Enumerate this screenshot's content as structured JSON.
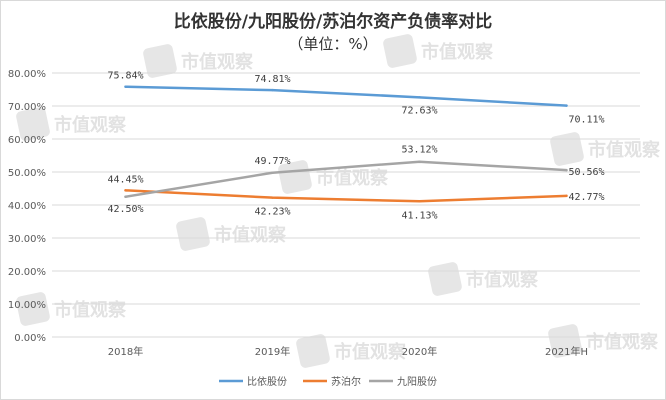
{
  "chart_data": {
    "type": "line",
    "title": "比依股份/九阳股份/苏泊尔资产负债率对比",
    "subtitle": "（单位：%）",
    "categories": [
      "2018年",
      "2019年",
      "2020年",
      "2021年H"
    ],
    "y_ticks": [
      "0.00%",
      "10.00%",
      "20.00%",
      "30.00%",
      "40.00%",
      "50.00%",
      "60.00%",
      "70.00%",
      "80.00%"
    ],
    "ylim": [
      0,
      80
    ],
    "grid": true,
    "legend_position": "bottom",
    "series": [
      {
        "name": "比依股份",
        "color": "#5B9BD5",
        "values": [
          75.84,
          74.81,
          72.63,
          70.11
        ],
        "labels": [
          "75.84%",
          "74.81%",
          "72.63%",
          "70.11%"
        ]
      },
      {
        "name": "苏泊尔",
        "color": "#ED7D31",
        "values": [
          44.45,
          42.23,
          41.13,
          42.77
        ],
        "labels": [
          "44.45%",
          "42.23%",
          "41.13%",
          "42.77%"
        ]
      },
      {
        "name": "九阳股份",
        "color": "#A5A5A5",
        "values": [
          42.5,
          49.77,
          53.12,
          50.56
        ],
        "labels": [
          "42.50%",
          "49.77%",
          "53.12%",
          "50.56%"
        ]
      }
    ]
  },
  "watermark": {
    "text": "市值观察",
    "icon": "watermark-logo-icon"
  }
}
